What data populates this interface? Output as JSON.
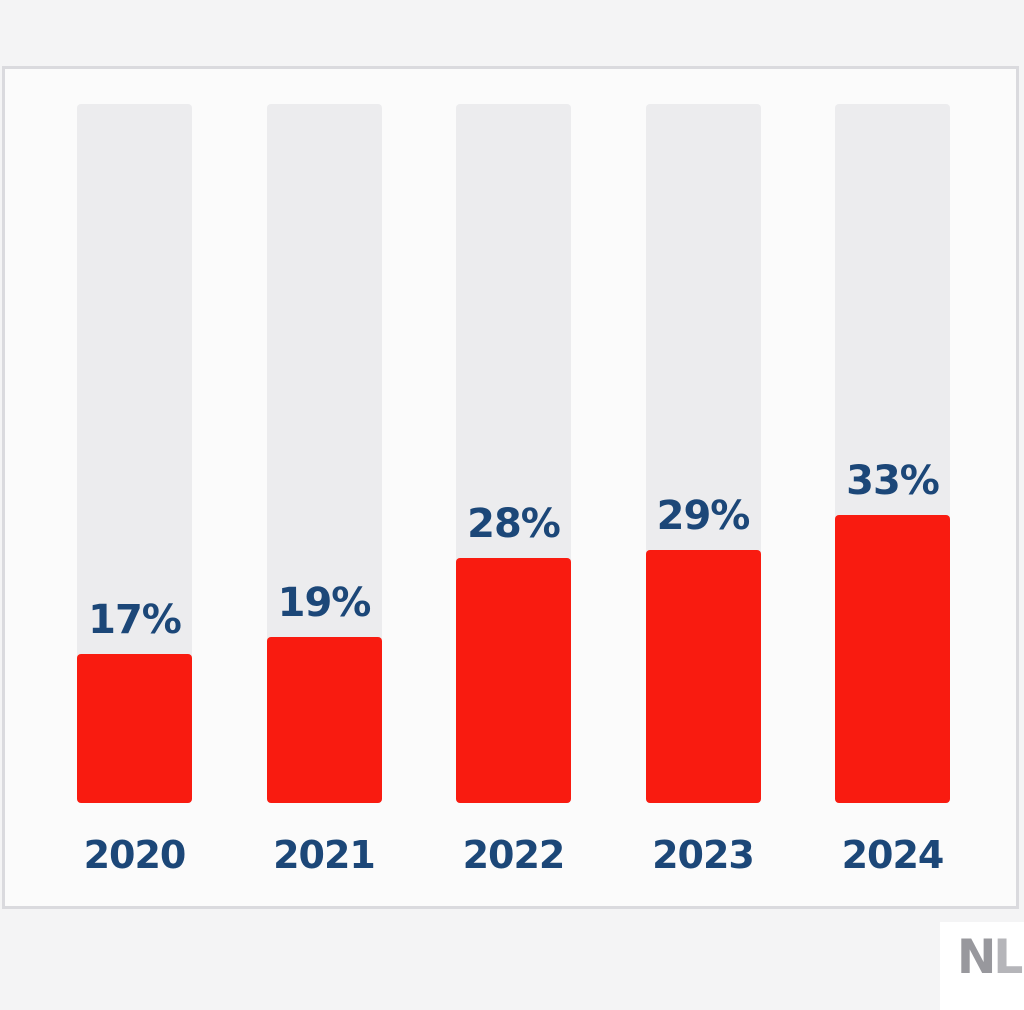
{
  "page": {
    "background_color": "#f4f4f5",
    "card_background_color": "#fbfbfb",
    "card_border_color": "#dadade"
  },
  "chart_data": {
    "type": "bar",
    "orientation": "vertical",
    "categories": [
      "2020",
      "2021",
      "2022",
      "2023",
      "2024"
    ],
    "values": [
      17,
      19,
      28,
      29,
      33
    ],
    "value_labels": [
      "17%",
      "19%",
      "28%",
      "29%",
      "33%"
    ],
    "unit": "%",
    "ylim": [
      0,
      100
    ],
    "grid": false,
    "legend": false,
    "bar_color": "#f91b10",
    "track_color": "#ececee",
    "label_color": "#1c4778"
  },
  "watermark": {
    "letter_n": "N",
    "letter_l": "L",
    "n_color": "#98989d",
    "l_color": "#b5b5b9",
    "dot_color": "#c9c9cd"
  }
}
